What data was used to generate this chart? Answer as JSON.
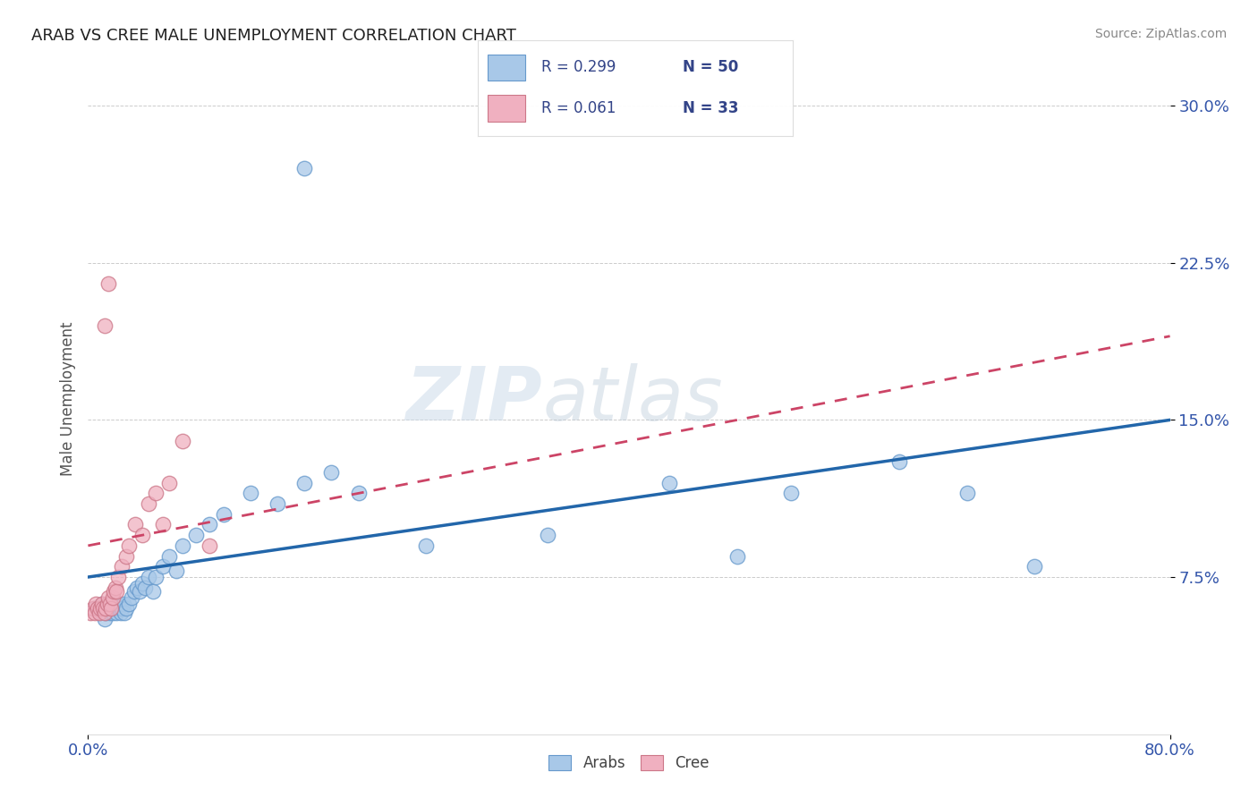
{
  "title": "ARAB VS CREE MALE UNEMPLOYMENT CORRELATION CHART",
  "source": "Source: ZipAtlas.com",
  "ylabel": "Male Unemployment",
  "xlim": [
    0.0,
    0.8
  ],
  "ylim": [
    0.0,
    0.32
  ],
  "yticks": [
    0.075,
    0.15,
    0.225,
    0.3
  ],
  "ytick_labels": [
    "7.5%",
    "15.0%",
    "22.5%",
    "30.0%"
  ],
  "xticks": [
    0.0,
    0.8
  ],
  "xtick_labels": [
    "0.0%",
    "80.0%"
  ],
  "color_arab": "#a8c8e8",
  "color_arab_edge": "#6699cc",
  "color_cree": "#f0b0c0",
  "color_cree_edge": "#cc7788",
  "color_arab_line": "#2266aa",
  "color_cree_line": "#cc4466",
  "watermark_zip": "ZIP",
  "watermark_atlas": "atlas",
  "arab_x": [
    0.005,
    0.008,
    0.01,
    0.012,
    0.013,
    0.015,
    0.016,
    0.017,
    0.018,
    0.019,
    0.02,
    0.021,
    0.022,
    0.023,
    0.024,
    0.025,
    0.026,
    0.027,
    0.028,
    0.03,
    0.032,
    0.034,
    0.036,
    0.038,
    0.04,
    0.042,
    0.045,
    0.048,
    0.05,
    0.055,
    0.06,
    0.065,
    0.07,
    0.08,
    0.09,
    0.1,
    0.12,
    0.14,
    0.16,
    0.18,
    0.2,
    0.25,
    0.34,
    0.43,
    0.48,
    0.52,
    0.6,
    0.65,
    0.7,
    0.16
  ],
  "arab_y": [
    0.06,
    0.058,
    0.062,
    0.055,
    0.058,
    0.06,
    0.058,
    0.062,
    0.058,
    0.06,
    0.062,
    0.058,
    0.062,
    0.06,
    0.058,
    0.06,
    0.062,
    0.058,
    0.06,
    0.062,
    0.065,
    0.068,
    0.07,
    0.068,
    0.072,
    0.07,
    0.075,
    0.068,
    0.075,
    0.08,
    0.085,
    0.078,
    0.09,
    0.095,
    0.1,
    0.105,
    0.115,
    0.11,
    0.12,
    0.125,
    0.115,
    0.09,
    0.095,
    0.12,
    0.085,
    0.115,
    0.13,
    0.115,
    0.08,
    0.27
  ],
  "cree_x": [
    0.002,
    0.004,
    0.005,
    0.006,
    0.007,
    0.008,
    0.009,
    0.01,
    0.011,
    0.012,
    0.013,
    0.014,
    0.015,
    0.016,
    0.017,
    0.018,
    0.019,
    0.02,
    0.021,
    0.022,
    0.025,
    0.028,
    0.03,
    0.035,
    0.04,
    0.045,
    0.05,
    0.055,
    0.06,
    0.07,
    0.09,
    0.012,
    0.015
  ],
  "cree_y": [
    0.058,
    0.06,
    0.058,
    0.062,
    0.06,
    0.058,
    0.06,
    0.062,
    0.06,
    0.058,
    0.06,
    0.062,
    0.065,
    0.062,
    0.06,
    0.065,
    0.068,
    0.07,
    0.068,
    0.075,
    0.08,
    0.085,
    0.09,
    0.1,
    0.095,
    0.11,
    0.115,
    0.1,
    0.12,
    0.14,
    0.09,
    0.195,
    0.215
  ]
}
